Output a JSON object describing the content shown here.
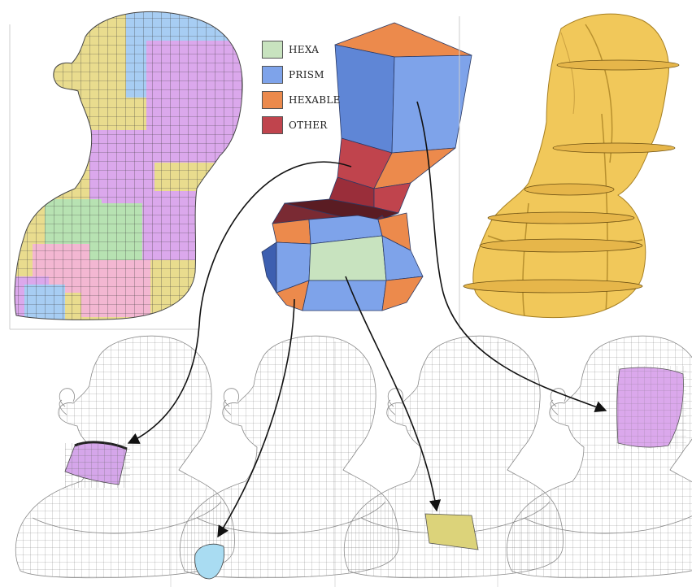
{
  "legend": {
    "items": [
      {
        "label": "HEXA",
        "color": "#c8e3bf"
      },
      {
        "label": "PRISM",
        "color": "#7ea3ea"
      },
      {
        "label": "HEXABLE",
        "color": "#ec8a4c"
      },
      {
        "label": "OTHER",
        "color": "#c0444d"
      }
    ]
  },
  "colors": {
    "mesh_tan": "#e9dc8e",
    "mesh_lilac": "#dba8ec",
    "mesh_green": "#b7e2b2",
    "mesh_pink": "#f3b7d2",
    "mesh_blue": "#a7cdf3",
    "gold_surface": "#f1c85a",
    "wire": "#9a9a9a",
    "arrow": "#111111"
  },
  "panels": [
    {
      "name": "quad-layout-mesh",
      "icon": "colored-quad-mesh-bust"
    },
    {
      "name": "polycube-skeleton",
      "icon": "block-graph-structure"
    },
    {
      "name": "cut-surfaces",
      "icon": "gold-cut-surface-bust"
    },
    {
      "name": "wireframe-neck-patch",
      "icon": "wireframe-bust-neck-highlight"
    },
    {
      "name": "wireframe-shoulder-patch",
      "icon": "wireframe-bust-shoulder-highlight"
    },
    {
      "name": "wireframe-chest-patch",
      "icon": "wireframe-bust-chest-highlight"
    },
    {
      "name": "wireframe-face-patch",
      "icon": "wireframe-bust-face-highlight"
    }
  ]
}
